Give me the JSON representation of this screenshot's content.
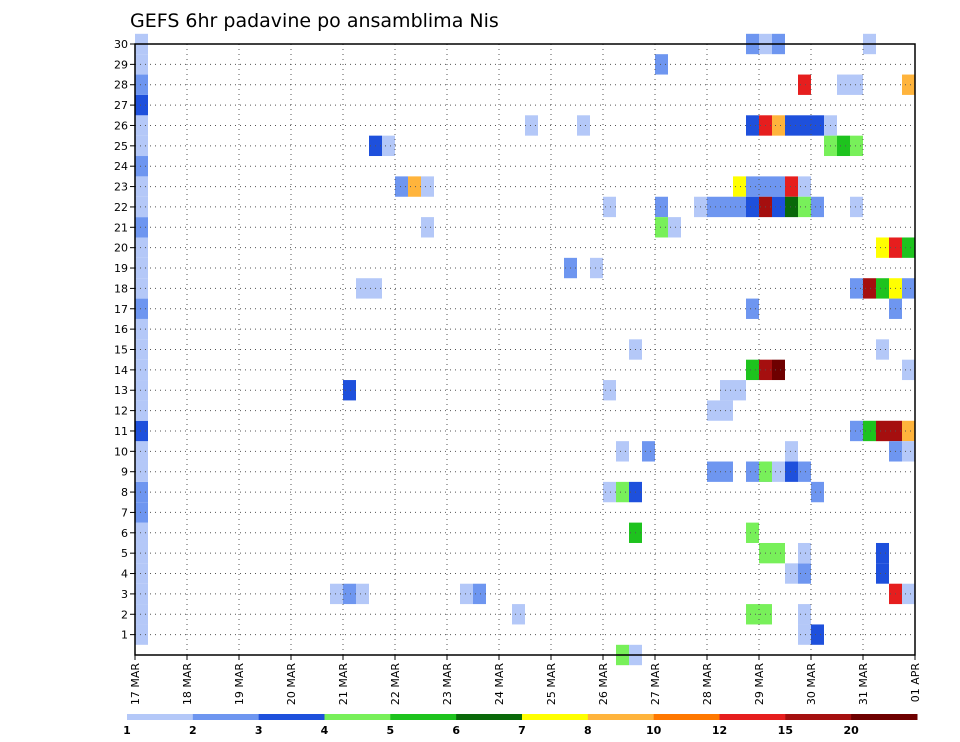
{
  "chart_data": {
    "type": "heatmap",
    "title": "GEFS 6hr padavine po ansamblima Nis",
    "xlabel": "",
    "ylabel": "",
    "x_ticks": [
      "17 MAR",
      "18 MAR",
      "19 MAR",
      "20 MAR",
      "21 MAR",
      "22 MAR",
      "23 MAR",
      "24 MAR",
      "25 MAR",
      "26 MAR",
      "27 MAR",
      "28 MAR",
      "29 MAR",
      "30 MAR",
      "31 MAR",
      "01 APR"
    ],
    "x_range_days": [
      0,
      15
    ],
    "steps_per_day": 4,
    "y_ticks": [
      1,
      2,
      3,
      4,
      5,
      6,
      7,
      8,
      9,
      10,
      11,
      12,
      13,
      14,
      15,
      16,
      17,
      18,
      19,
      20,
      21,
      22,
      23,
      24,
      25,
      26,
      27,
      28,
      29,
      30
    ],
    "ylim": [
      0,
      30
    ],
    "grid": true,
    "legend": {
      "position": "bottom",
      "levels": [
        "1",
        "2",
        "3",
        "4",
        "5",
        "6",
        "7",
        "8",
        "10",
        "12",
        "15",
        "20"
      ],
      "colors": [
        "#b4c8f8",
        "#6e96f0",
        "#1e50dc",
        "#78f05a",
        "#1ec31e",
        "#0a690a",
        "#ffff00",
        "#ffb43c",
        "#ff7800",
        "#e61e1e",
        "#a50f0f",
        "#6e0000"
      ]
    },
    "cells": [
      [
        0,
        1,
        1
      ],
      [
        0,
        2,
        1
      ],
      [
        0,
        3,
        1
      ],
      [
        0,
        4,
        1
      ],
      [
        0,
        5,
        1
      ],
      [
        0,
        6,
        1
      ],
      [
        0,
        7,
        2
      ],
      [
        0,
        8,
        2
      ],
      [
        0,
        9,
        1
      ],
      [
        0,
        10,
        1
      ],
      [
        0,
        11,
        3
      ],
      [
        0,
        12,
        1
      ],
      [
        0,
        13,
        1
      ],
      [
        0,
        14,
        1
      ],
      [
        0,
        15,
        1
      ],
      [
        0,
        16,
        1
      ],
      [
        0,
        17,
        2
      ],
      [
        0,
        18,
        1
      ],
      [
        0,
        19,
        1
      ],
      [
        0,
        20,
        1
      ],
      [
        0,
        21,
        2
      ],
      [
        0,
        22,
        1
      ],
      [
        0,
        23,
        1
      ],
      [
        0,
        24,
        2
      ],
      [
        0,
        25,
        1
      ],
      [
        0,
        26,
        1
      ],
      [
        0,
        27,
        3
      ],
      [
        0,
        28,
        2
      ],
      [
        0,
        29,
        1
      ],
      [
        0,
        30,
        1
      ],
      [
        16,
        13,
        3
      ],
      [
        15,
        3,
        1
      ],
      [
        16,
        3,
        2
      ],
      [
        17,
        3,
        1
      ],
      [
        17,
        18,
        1
      ],
      [
        18,
        18,
        1
      ],
      [
        18,
        25,
        3
      ],
      [
        19,
        25,
        1
      ],
      [
        20,
        23,
        2
      ],
      [
        21,
        23,
        8
      ],
      [
        22,
        23,
        1
      ],
      [
        22,
        21,
        1
      ],
      [
        25,
        3,
        1
      ],
      [
        26,
        3,
        2
      ],
      [
        29,
        2,
        1
      ],
      [
        30,
        26,
        1
      ],
      [
        33,
        19,
        2
      ],
      [
        34,
        26,
        1
      ],
      [
        35,
        19,
        1
      ],
      [
        36,
        22,
        1
      ],
      [
        36,
        13,
        1
      ],
      [
        36,
        8,
        1
      ],
      [
        37,
        10,
        1
      ],
      [
        37,
        8,
        4
      ],
      [
        37,
        0,
        4
      ],
      [
        38,
        0,
        1
      ],
      [
        38,
        8,
        3
      ],
      [
        38,
        6,
        5
      ],
      [
        38,
        15,
        1
      ],
      [
        39,
        10,
        2
      ],
      [
        40,
        29,
        2
      ],
      [
        40,
        22,
        2
      ],
      [
        40,
        21,
        4
      ],
      [
        41,
        21,
        1
      ],
      [
        43,
        22,
        1
      ],
      [
        44,
        22,
        2
      ],
      [
        45,
        22,
        2
      ],
      [
        44,
        12,
        1
      ],
      [
        45,
        12,
        1
      ],
      [
        44,
        9,
        2
      ],
      [
        45,
        9,
        2
      ],
      [
        45,
        13,
        1
      ],
      [
        46,
        13,
        1
      ],
      [
        46,
        23,
        7
      ],
      [
        47,
        23,
        2
      ],
      [
        48,
        23,
        2
      ],
      [
        49,
        23,
        2
      ],
      [
        50,
        23,
        10
      ],
      [
        51,
        23,
        1
      ],
      [
        46,
        22,
        2
      ],
      [
        47,
        22,
        3
      ],
      [
        48,
        22,
        11
      ],
      [
        49,
        22,
        3
      ],
      [
        50,
        22,
        6
      ],
      [
        51,
        22,
        4
      ],
      [
        52,
        22,
        2
      ],
      [
        47,
        30,
        2
      ],
      [
        48,
        30,
        1
      ],
      [
        49,
        30,
        2
      ],
      [
        47,
        17,
        2
      ],
      [
        47,
        6,
        4
      ],
      [
        47,
        2,
        4
      ],
      [
        48,
        2,
        4
      ],
      [
        47,
        9,
        2
      ],
      [
        48,
        9,
        2
      ],
      [
        47,
        26,
        3
      ],
      [
        48,
        26,
        10
      ],
      [
        49,
        26,
        8
      ],
      [
        50,
        26,
        3
      ],
      [
        51,
        26,
        3
      ],
      [
        52,
        26,
        3
      ],
      [
        47,
        14,
        5
      ],
      [
        48,
        14,
        11
      ],
      [
        49,
        14,
        12
      ],
      [
        48,
        9,
        4
      ],
      [
        49,
        9,
        1
      ],
      [
        50,
        9,
        3
      ],
      [
        51,
        9,
        2
      ],
      [
        48,
        5,
        4
      ],
      [
        49,
        5,
        4
      ],
      [
        50,
        10,
        1
      ],
      [
        50,
        4,
        1
      ],
      [
        51,
        4,
        2
      ],
      [
        51,
        28,
        10
      ],
      [
        51,
        5,
        1
      ],
      [
        51,
        2,
        1
      ],
      [
        51,
        1,
        1
      ],
      [
        52,
        1,
        3
      ],
      [
        52,
        8,
        2
      ],
      [
        53,
        26,
        1
      ],
      [
        53,
        25,
        4
      ],
      [
        54,
        25,
        5
      ],
      [
        55,
        25,
        4
      ],
      [
        54,
        28,
        1
      ],
      [
        55,
        28,
        1
      ],
      [
        55,
        22,
        1
      ],
      [
        55,
        18,
        2
      ],
      [
        56,
        18,
        11
      ],
      [
        57,
        18,
        5
      ],
      [
        58,
        18,
        7
      ],
      [
        59,
        18,
        2
      ],
      [
        60,
        18,
        3
      ],
      [
        55,
        11,
        2
      ],
      [
        56,
        11,
        5
      ],
      [
        57,
        11,
        11
      ],
      [
        58,
        11,
        11
      ],
      [
        59,
        11,
        8
      ],
      [
        60,
        11,
        3
      ],
      [
        56,
        30,
        1
      ],
      [
        57,
        15,
        1
      ],
      [
        57,
        20,
        7
      ],
      [
        58,
        20,
        10
      ],
      [
        59,
        20,
        5
      ],
      [
        60,
        20,
        1
      ],
      [
        57,
        5,
        3
      ],
      [
        57,
        4,
        3
      ],
      [
        58,
        17,
        2
      ],
      [
        58,
        10,
        2
      ],
      [
        59,
        10,
        1
      ],
      [
        60,
        10,
        2
      ],
      [
        58,
        3,
        10
      ],
      [
        59,
        3,
        1
      ],
      [
        60,
        3,
        1
      ],
      [
        59,
        14,
        1
      ],
      [
        60,
        14,
        2
      ],
      [
        59,
        28,
        8
      ],
      [
        60,
        28,
        1
      ],
      [
        60,
        6,
        4
      ],
      [
        60,
        4,
        6
      ],
      [
        61,
        24,
        3
      ]
    ]
  }
}
